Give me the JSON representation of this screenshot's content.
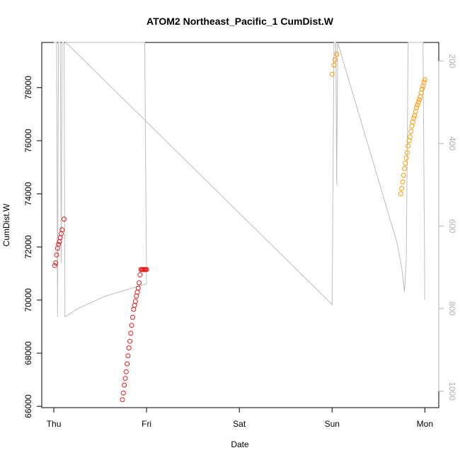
{
  "chart_data": {
    "type": "scatter",
    "title": "ATOM2 Northeast_Pacific_1 CumDist.W",
    "xlabel": "Date",
    "ylabel": "CumDist.W",
    "x_ticks": [
      {
        "label": "Thu",
        "value": 0
      },
      {
        "label": "Fri",
        "value": 1
      },
      {
        "label": "Sat",
        "value": 2
      },
      {
        "label": "Sun",
        "value": 3
      },
      {
        "label": "Mon",
        "value": 4
      }
    ],
    "y_ticks": [
      66000,
      68000,
      70000,
      72000,
      74000,
      76000,
      78000
    ],
    "y_tick_labels": [
      "66000",
      "68000",
      "70000",
      "72000",
      "74000",
      "76000",
      "78000"
    ],
    "y2_ticks": [
      200,
      400,
      600,
      800,
      1000
    ],
    "y2_tick_labels": [
      "200",
      "400",
      "600",
      "800",
      "1000"
    ],
    "xlim": [
      -0.13,
      4.15
    ],
    "ylim": [
      65950,
      79700
    ],
    "y2lim": [
      1040,
      155
    ],
    "grid": false,
    "legend": "none",
    "colors": {
      "red": "#e41a1c",
      "orange": "#ff9900",
      "depth": "#bdbdbd"
    },
    "series": [
      {
        "color": "#e41a1c",
        "x": [
          0.01,
          0.02,
          0.03,
          0.04,
          0.05,
          0.06,
          0.07,
          0.08,
          0.09,
          0.11
        ],
        "y": [
          71300,
          71400,
          71700,
          71950,
          72100,
          72200,
          72350,
          72500,
          72650,
          73050
        ]
      },
      {
        "color": "#e41a1c",
        "x": [
          0.74,
          0.75,
          0.76,
          0.77,
          0.78,
          0.79,
          0.8,
          0.81,
          0.82,
          0.83,
          0.84,
          0.85,
          0.86,
          0.87,
          0.88,
          0.89,
          0.9,
          0.91,
          0.92,
          0.93,
          0.94,
          0.95,
          0.96,
          0.97,
          0.98,
          0.99,
          1.0
        ],
        "y": [
          66250,
          66500,
          66800,
          67050,
          67300,
          67600,
          67900,
          68200,
          68450,
          68750,
          69050,
          69350,
          69650,
          69800,
          69950,
          70150,
          70300,
          70450,
          70650,
          70950,
          71150,
          71150,
          71150,
          71150,
          71150,
          71150,
          71150
        ]
      },
      {
        "color": "#ff9900",
        "x": [
          3.0,
          3.02,
          3.03,
          3.05
        ],
        "y": [
          78500,
          78850,
          79050,
          79250
        ]
      },
      {
        "color": "#ff9900",
        "x": [
          3.74,
          3.75,
          3.76,
          3.77,
          3.78,
          3.79,
          3.8,
          3.81,
          3.82,
          3.83,
          3.84,
          3.85,
          3.86,
          3.87,
          3.88,
          3.89,
          3.9,
          3.91,
          3.92,
          3.93,
          3.94,
          3.95,
          3.96,
          3.97,
          3.98,
          3.99,
          4.0
        ],
        "y": [
          74000,
          74200,
          74450,
          74700,
          74950,
          75150,
          75350,
          75550,
          75800,
          76000,
          76150,
          76350,
          76550,
          76700,
          76850,
          76950,
          77100,
          77250,
          77350,
          77450,
          77550,
          77650,
          77800,
          77950,
          78050,
          78200,
          78300
        ]
      }
    ],
    "depth_profile": {
      "axis": "right",
      "color": "#bdbdbd",
      "x": [
        0.0,
        0.01,
        0.02,
        0.03,
        0.04,
        0.05,
        0.06,
        0.07,
        0.08,
        0.09,
        0.1,
        0.11,
        0.12,
        0.26,
        0.55,
        1.0,
        0.98,
        0.97,
        0.96,
        0.95,
        0.94,
        0.93,
        0.92,
        0.91,
        0.9,
        0.89,
        0.88,
        0.87,
        0.86,
        0.85,
        0.84,
        0.83,
        0.82,
        0.81,
        0.8,
        0.79,
        0.78,
        0.77,
        0.76,
        0.75,
        0.74,
        0.73,
        0.72,
        0.71,
        0.7,
        0.69,
        0.68,
        0.67,
        0.66,
        0.65,
        0.64,
        0.63,
        0.62,
        0.61,
        0.6,
        0.59,
        0.58,
        0.57,
        0.56,
        0.55,
        0.54,
        0.53,
        0.52,
        0.51,
        0.5,
        0.49,
        0.48,
        0.47,
        0.46,
        0.45,
        0.44,
        0.43,
        0.42,
        0.41,
        0.4,
        0.39,
        0.38,
        0.37,
        0.36,
        0.35,
        0.34,
        0.33,
        0.32,
        0.31,
        0.3,
        0.29,
        0.28,
        0.27,
        0.26,
        0.25,
        0.24,
        0.23,
        0.22,
        0.21,
        0.2,
        0.19,
        0.18,
        0.17,
        0.16,
        0.15,
        0.14,
        0.13,
        3.0,
        3.02,
        3.04,
        3.05,
        3.06,
        3.7,
        3.75,
        3.76,
        3.78,
        3.8,
        3.82,
        3.84,
        3.86,
        3.88,
        3.9,
        3.92,
        3.94,
        3.96,
        3.98,
        4.0
      ],
      "y": [
        150,
        150,
        150,
        150,
        820,
        150,
        150,
        150,
        690,
        150,
        150,
        150,
        820,
        800,
        770,
        740,
        130,
        130,
        130,
        130,
        130,
        130,
        130,
        130,
        130,
        130,
        130,
        130,
        130,
        130,
        130,
        130,
        130,
        130,
        130,
        130,
        130,
        130,
        130,
        130,
        130,
        130,
        130,
        130,
        130,
        130,
        130,
        130,
        130,
        130,
        130,
        130,
        130,
        130,
        130,
        130,
        130,
        130,
        130,
        130,
        130,
        130,
        130,
        130,
        130,
        130,
        130,
        130,
        130,
        130,
        130,
        130,
        130,
        130,
        130,
        130,
        130,
        130,
        130,
        130,
        130,
        130,
        130,
        130,
        130,
        130,
        130,
        130,
        130,
        130,
        130,
        130,
        130,
        130,
        130,
        130,
        130,
        130,
        130,
        130,
        130,
        130,
        790,
        150,
        150,
        500,
        150,
        640,
        700,
        720,
        760,
        680,
        150,
        150,
        150,
        150,
        150,
        150,
        150,
        150,
        150,
        780
      ]
    }
  }
}
